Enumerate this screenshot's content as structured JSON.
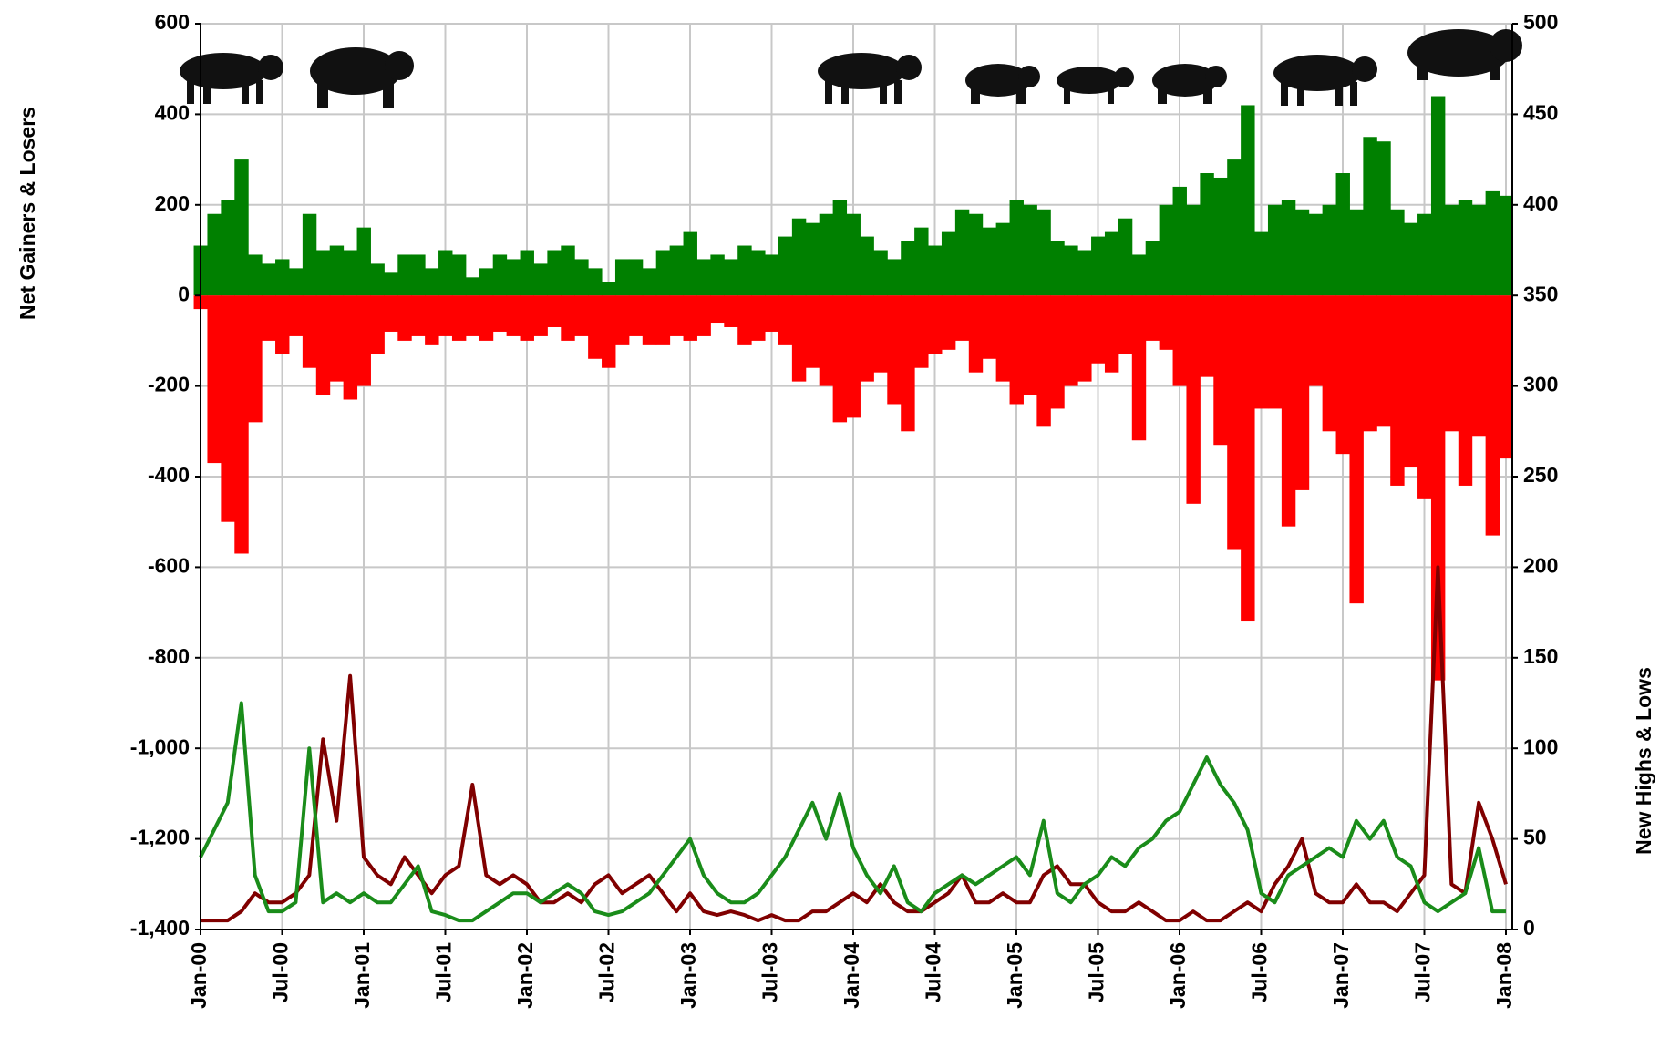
{
  "chart_data": {
    "type": "combo",
    "y_label": "Net Gainers & Losers",
    "y2_label": "New Highs & Lows",
    "x": [
      "Jan-00",
      "Feb-00",
      "Mar-00",
      "Apr-00",
      "May-00",
      "Jun-00",
      "Jul-00",
      "Aug-00",
      "Sep-00",
      "Oct-00",
      "Nov-00",
      "Dec-00",
      "Jan-01",
      "Feb-01",
      "Mar-01",
      "Apr-01",
      "May-01",
      "Jun-01",
      "Jul-01",
      "Aug-01",
      "Sep-01",
      "Oct-01",
      "Nov-01",
      "Dec-01",
      "Jan-02",
      "Feb-02",
      "Mar-02",
      "Apr-02",
      "May-02",
      "Jun-02",
      "Jul-02",
      "Aug-02",
      "Sep-02",
      "Oct-02",
      "Nov-02",
      "Dec-02",
      "Jan-03",
      "Feb-03",
      "Mar-03",
      "Apr-03",
      "May-03",
      "Jun-03",
      "Jul-03",
      "Aug-03",
      "Sep-03",
      "Oct-03",
      "Nov-03",
      "Dec-03",
      "Jan-04",
      "Feb-04",
      "Mar-04",
      "Apr-04",
      "May-04",
      "Jun-04",
      "Jul-04",
      "Aug-04",
      "Sep-04",
      "Oct-04",
      "Nov-04",
      "Dec-04",
      "Jan-05",
      "Feb-05",
      "Mar-05",
      "Apr-05",
      "May-05",
      "Jun-05",
      "Jul-05",
      "Aug-05",
      "Sep-05",
      "Oct-05",
      "Nov-05",
      "Dec-05",
      "Jan-06",
      "Feb-06",
      "Mar-06",
      "Apr-06",
      "May-06",
      "Jun-06",
      "Jul-06",
      "Aug-06",
      "Sep-06",
      "Oct-06",
      "Nov-06",
      "Dec-06",
      "Jan-07",
      "Feb-07",
      "Mar-07",
      "Apr-07",
      "May-07",
      "Jun-07",
      "Jul-07",
      "Aug-07",
      "Sep-07",
      "Oct-07",
      "Nov-07",
      "Dec-07",
      "Jan-08"
    ],
    "xticks": [
      "Jan-00",
      "Jul-00",
      "Jan-01",
      "Jul-01",
      "Jan-02",
      "Jul-02",
      "Jan-03",
      "Jul-03",
      "Jan-04",
      "Jul-04",
      "Jan-05",
      "Jul-05",
      "Jan-06",
      "Jul-06",
      "Jan-07",
      "Jul-07",
      "Jan-08"
    ],
    "ylim": [
      -1400,
      600
    ],
    "yticks": [
      600,
      400,
      200,
      0,
      -200,
      -400,
      -600,
      -800,
      {
        "value": -1000,
        "label": "-1,000"
      },
      {
        "value": -1200,
        "label": "-1,200"
      },
      {
        "value": -1400,
        "label": "-1,400"
      }
    ],
    "y2lim": [
      0,
      500
    ],
    "y2ticks": [
      500,
      450,
      400,
      350,
      300,
      250,
      200,
      150,
      100,
      50,
      0
    ],
    "grid": true,
    "series": [
      {
        "type": "bar",
        "color": "#008000",
        "values": [
          110,
          180,
          210,
          300,
          90,
          70,
          80,
          60,
          180,
          100,
          110,
          100,
          150,
          70,
          50,
          90,
          90,
          60,
          100,
          90,
          40,
          60,
          90,
          80,
          100,
          70,
          100,
          110,
          80,
          60,
          30,
          80,
          80,
          60,
          100,
          110,
          140,
          80,
          90,
          80,
          110,
          100,
          90,
          130,
          170,
          160,
          180,
          210,
          180,
          130,
          100,
          80,
          120,
          150,
          110,
          140,
          190,
          180,
          150,
          160,
          210,
          200,
          190,
          120,
          110,
          100,
          130,
          140,
          170,
          90,
          120,
          200,
          240,
          200,
          270,
          260,
          300,
          420,
          140,
          200,
          210,
          190,
          180,
          200,
          270,
          190,
          350,
          340,
          190,
          160,
          180,
          440,
          200,
          210,
          200,
          230,
          220
        ]
      },
      {
        "type": "bar",
        "color": "#ff0000",
        "values": [
          -30,
          -370,
          -500,
          -570,
          -280,
          -100,
          -130,
          -90,
          -160,
          -220,
          -190,
          -230,
          -200,
          -130,
          -80,
          -100,
          -90,
          -110,
          -90,
          -100,
          -90,
          -100,
          -80,
          -90,
          -100,
          -90,
          -70,
          -100,
          -90,
          -140,
          -160,
          -110,
          -90,
          -110,
          -110,
          -90,
          -100,
          -90,
          -60,
          -70,
          -110,
          -100,
          -80,
          -110,
          -190,
          -160,
          -200,
          -280,
          -270,
          -190,
          -170,
          -240,
          -300,
          -160,
          -130,
          -120,
          -100,
          -170,
          -140,
          -190,
          -240,
          -220,
          -290,
          -250,
          -200,
          -190,
          -150,
          -170,
          -130,
          -320,
          -100,
          -120,
          -200,
          -460,
          -180,
          -330,
          -560,
          -720,
          -250,
          -250,
          -510,
          -430,
          -200,
          -300,
          -350,
          -680,
          -300,
          -290,
          -420,
          -380,
          -450,
          -850,
          -300,
          -420,
          -310,
          -530,
          -360
        ]
      },
      {
        "type": "line",
        "axis": "y2",
        "color": "#800000",
        "values": [
          5,
          5,
          5,
          10,
          20,
          15,
          15,
          20,
          30,
          105,
          60,
          140,
          40,
          30,
          25,
          40,
          30,
          20,
          30,
          35,
          80,
          30,
          25,
          30,
          25,
          15,
          15,
          20,
          15,
          25,
          30,
          20,
          25,
          30,
          20,
          10,
          20,
          10,
          8,
          10,
          8,
          5,
          8,
          5,
          5,
          10,
          10,
          15,
          20,
          15,
          25,
          15,
          10,
          10,
          15,
          20,
          30,
          15,
          15,
          20,
          15,
          15,
          30,
          35,
          25,
          25,
          15,
          10,
          10,
          15,
          10,
          5,
          5,
          10,
          5,
          5,
          10,
          15,
          10,
          25,
          35,
          50,
          20,
          15,
          15,
          25,
          15,
          15,
          10,
          20,
          30,
          200,
          25,
          20,
          70,
          50,
          25
        ]
      },
      {
        "type": "line",
        "axis": "y2",
        "color": "#1a8c1a",
        "values": [
          40,
          55,
          70,
          125,
          30,
          10,
          10,
          15,
          100,
          15,
          20,
          15,
          20,
          15,
          15,
          25,
          35,
          10,
          8,
          5,
          5,
          10,
          15,
          20,
          20,
          15,
          20,
          25,
          20,
          10,
          8,
          10,
          15,
          20,
          30,
          40,
          50,
          30,
          20,
          15,
          15,
          20,
          30,
          40,
          55,
          70,
          50,
          75,
          45,
          30,
          20,
          35,
          15,
          10,
          20,
          25,
          30,
          25,
          30,
          35,
          40,
          30,
          60,
          20,
          15,
          25,
          30,
          40,
          35,
          45,
          50,
          60,
          65,
          80,
          95,
          80,
          70,
          55,
          20,
          15,
          30,
          35,
          40,
          45,
          40,
          60,
          50,
          60,
          40,
          35,
          15,
          10,
          15,
          20,
          45,
          10,
          10
        ]
      }
    ]
  }
}
